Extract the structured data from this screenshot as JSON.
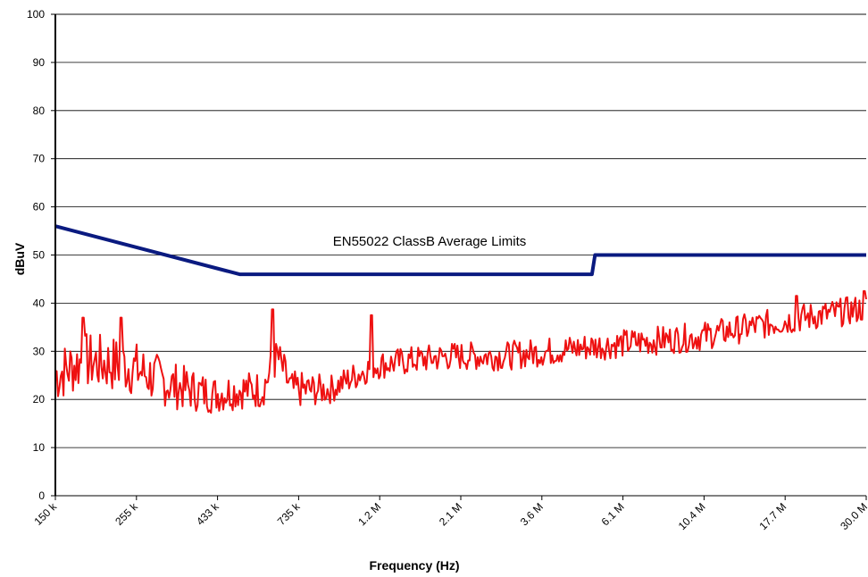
{
  "chart_data": {
    "type": "line",
    "title": "",
    "xlabel": "Frequency (Hz)",
    "ylabel": "dBuV",
    "ylim": [
      0,
      100
    ],
    "yticks": [
      0,
      10,
      20,
      30,
      40,
      50,
      60,
      70,
      80,
      90,
      100
    ],
    "xscale": "log",
    "xlim_hz": [
      150000,
      30000000
    ],
    "xtick_labels": [
      "150 k",
      "255 k",
      "433 k",
      "735 k",
      "1.2 M",
      "2.1 M",
      "3.6 M",
      "6.1 M",
      "10.4 M",
      "17.7 M",
      "30.0 M"
    ],
    "grid": "horizontal",
    "annotation": "EN55022 ClassB Average Limits",
    "colors": {
      "limit": "#0a1a80",
      "measurement": "#ee1111",
      "grid": "#000000"
    },
    "series": [
      {
        "role": "limit",
        "x_hz": [
          150000,
          500000,
          5000000,
          5100000,
          30000000
        ],
        "y": [
          56,
          46,
          46,
          50,
          50
        ]
      },
      {
        "role": "measurement",
        "x_hz": [
          150000,
          180000,
          240000,
          320000,
          420000,
          500000,
          580000,
          640000,
          700000,
          900000,
          1200000,
          1500000,
          2000000,
          2800000,
          3800000,
          5000000,
          7000000,
          10000000,
          14000000,
          20000000,
          25000000,
          30000000
        ],
        "y": [
          25,
          28,
          27,
          23,
          21,
          22,
          22,
          29,
          22,
          22,
          27,
          28,
          29,
          29,
          30,
          31,
          32,
          33,
          35,
          37,
          38,
          39
        ],
        "spread": [
          6,
          6,
          6,
          5,
          4,
          4,
          4,
          4,
          4,
          3,
          3,
          3,
          3,
          3,
          3,
          3,
          3,
          3,
          3,
          3,
          3,
          3
        ],
        "peaks": [
          {
            "x_hz": 180000,
            "y": 37
          },
          {
            "x_hz": 230000,
            "y": 37
          },
          {
            "x_hz": 620000,
            "y": 38.7
          },
          {
            "x_hz": 1180000,
            "y": 37.5
          },
          {
            "x_hz": 19000000,
            "y": 41.5
          },
          {
            "x_hz": 29500000,
            "y": 42.5
          }
        ],
        "samples": 600,
        "seed": 7
      }
    ]
  }
}
